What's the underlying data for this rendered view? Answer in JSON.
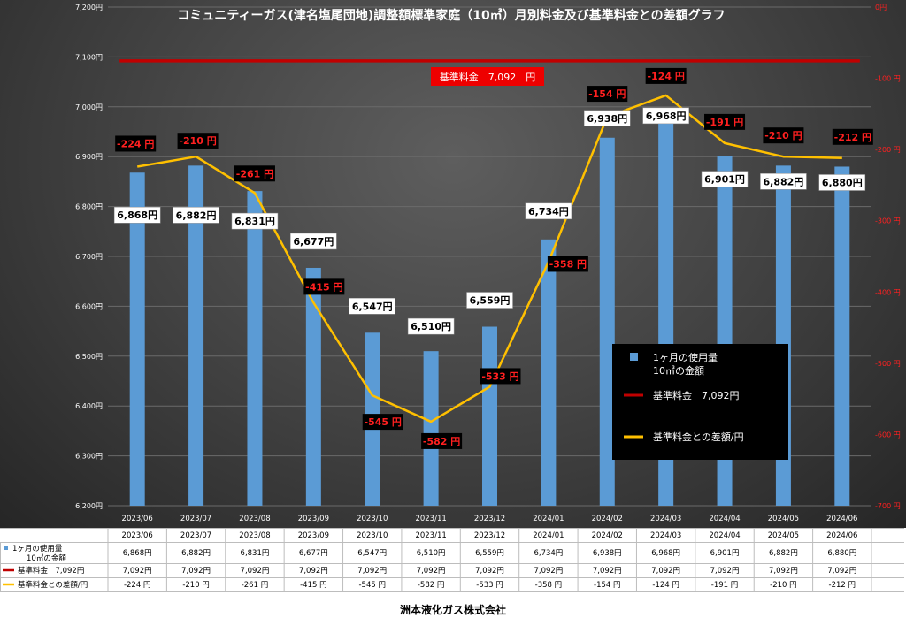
{
  "chart_data": {
    "type": "bar",
    "title": "コミュニティーガス(津名塩尾団地)調整額標準家庭（10㎥）月別料金及び基準料金との差額グラフ",
    "categories": [
      "2023/06",
      "2023/07",
      "2023/08",
      "2023/09",
      "2023/10",
      "2023/11",
      "2023/12",
      "2024/01",
      "2024/02",
      "2024/03",
      "2024/04",
      "2024/05",
      "2024/06"
    ],
    "series": [
      {
        "name": "1ヶ月の使用量10㎥の金額",
        "type": "bar",
        "axis": "left",
        "color": "#5b9bd5",
        "values": [
          6868,
          6882,
          6831,
          6677,
          6547,
          6510,
          6559,
          6734,
          6938,
          6968,
          6901,
          6882,
          6880
        ],
        "labels": [
          "6,868円",
          "6,882円",
          "6,831円",
          "6,677円",
          "6,547円",
          "6,510円",
          "6,559円",
          "6,734円",
          "6,938円",
          "6,968円",
          "6,901円",
          "6,882円",
          "6,880円"
        ]
      },
      {
        "name": "基準料金 7,092円",
        "type": "line",
        "axis": "left",
        "color": "#c00000",
        "values": [
          7092,
          7092,
          7092,
          7092,
          7092,
          7092,
          7092,
          7092,
          7092,
          7092,
          7092,
          7092,
          7092
        ]
      },
      {
        "name": "基準料金との差額/円",
        "type": "line",
        "axis": "right",
        "color": "#ffc000",
        "values": [
          -224,
          -210,
          -261,
          -415,
          -545,
          -582,
          -533,
          -358,
          -154,
          -124,
          -191,
          -210,
          -212
        ],
        "labels": [
          "-224 円",
          "-210 円",
          "-261 円",
          "-415 円",
          "-545 円",
          "-582 円",
          "-533 円",
          "-358 円",
          "-154 円",
          "-124 円",
          "-191 円",
          "-210 円",
          "-212 円"
        ]
      }
    ],
    "y_left": {
      "min": 6200,
      "max": 7200,
      "step": 100,
      "ticks": [
        "6,200円",
        "6,300円",
        "6,400円",
        "6,500円",
        "6,600円",
        "6,700円",
        "6,800円",
        "6,900円",
        "7,000円",
        "7,100円",
        "7,200円"
      ]
    },
    "y_right": {
      "min": -700,
      "max": 0,
      "step": 100,
      "ticks": [
        "-700 円",
        "-600 円",
        "-500 円",
        "-400 円",
        "-300 円",
        "-200 円",
        "-100 円",
        "0円"
      ]
    },
    "baseline_label": "基準料金　7,092　円",
    "legend_position": "bottom-right",
    "legend": [
      {
        "label": "1ヶ月の使用量",
        "label2": "10㎥の金額",
        "color": "#5b9bd5",
        "shape": "bar"
      },
      {
        "label": "基準料金　7,092円",
        "color": "#c00000",
        "shape": "line"
      },
      {
        "label": "基準料金との差額/円",
        "color": "#ffc000",
        "shape": "line"
      }
    ],
    "grid": true
  },
  "table": {
    "rows": [
      {
        "label": "1ヶ月の使用量",
        "label2": "10㎥の金額",
        "color": "#5b9bd5",
        "shape": "bar",
        "cells": [
          "6,868円",
          "6,882円",
          "6,831円",
          "6,677円",
          "6,547円",
          "6,510円",
          "6,559円",
          "6,734円",
          "6,938円",
          "6,968円",
          "6,901円",
          "6,882円",
          "6,880円"
        ]
      },
      {
        "label": "基準料金　7,092円",
        "color": "#c00000",
        "shape": "line",
        "cells": [
          "7,092円",
          "7,092円",
          "7,092円",
          "7,092円",
          "7,092円",
          "7,092円",
          "7,092円",
          "7,092円",
          "7,092円",
          "7,092円",
          "7,092円",
          "7,092円",
          "7,092円"
        ]
      },
      {
        "label": "基準料金との差額/円",
        "color": "#ffc000",
        "shape": "line",
        "cells": [
          "-224 円",
          "-210 円",
          "-261 円",
          "-415 円",
          "-545 円",
          "-582 円",
          "-533 円",
          "-358 円",
          "-154 円",
          "-124 円",
          "-191 円",
          "-210 円",
          "-212 円"
        ]
      }
    ]
  },
  "footer": "洲本液化ガス株式会社"
}
